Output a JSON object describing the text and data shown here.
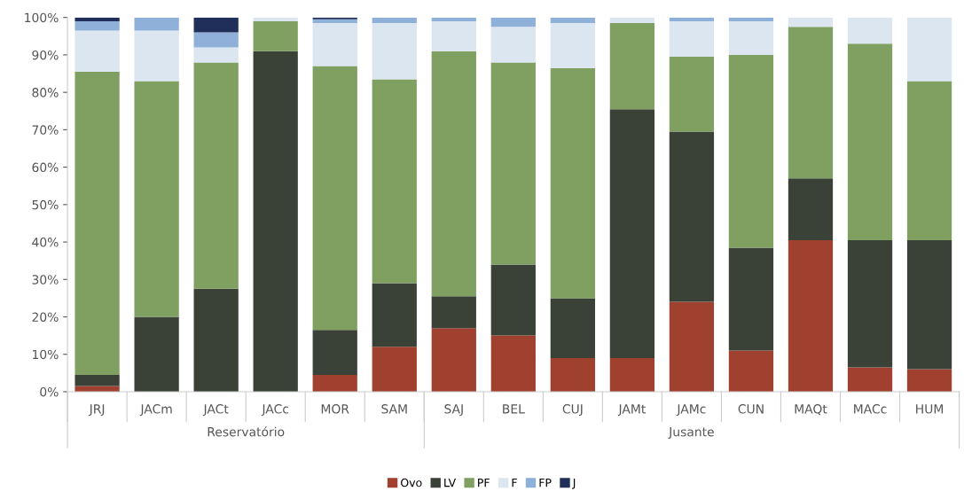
{
  "chart_data": {
    "type": "bar",
    "stacked": true,
    "categories": [
      "JRJ",
      "JACm",
      "JACt",
      "JACc",
      "MOR",
      "SAM",
      "SAJ",
      "BEL",
      "CUJ",
      "JAMt",
      "JAMc",
      "CUN",
      "MAQt",
      "MACc",
      "HUM"
    ],
    "series": [
      {
        "name": "Ovo",
        "color": "#a0402e",
        "values": [
          1.5,
          0,
          0,
          0,
          4.5,
          12,
          17,
          15,
          9,
          9,
          24,
          11,
          40.5,
          6.5,
          6
        ]
      },
      {
        "name": "LV",
        "color": "#3a4238",
        "values": [
          3,
          20,
          27.5,
          91,
          12,
          17,
          8.5,
          19,
          16,
          66.5,
          45.5,
          27.5,
          16.5,
          34,
          34.5
        ]
      },
      {
        "name": "PF",
        "color": "#7fa060",
        "values": [
          81,
          63,
          60.5,
          8,
          70.5,
          54.5,
          65.5,
          54,
          61.5,
          23,
          20,
          51.5,
          40.5,
          52.5,
          42.5
        ]
      },
      {
        "name": "F",
        "color": "#dce6f0",
        "values": [
          11,
          13.5,
          4,
          1,
          11.5,
          15,
          8,
          9.5,
          12,
          1.5,
          9.5,
          9,
          2.5,
          7,
          17
        ]
      },
      {
        "name": "FP",
        "color": "#8fb0d8",
        "values": [
          2.5,
          3.5,
          4,
          0,
          1,
          1.5,
          1,
          2.5,
          1.5,
          0,
          1,
          1,
          0,
          0,
          0
        ]
      },
      {
        "name": "J",
        "color": "#1f2f5a",
        "values": [
          1,
          0,
          4,
          0,
          0.5,
          0,
          0,
          0,
          0,
          0,
          0,
          0,
          0,
          0,
          0
        ]
      }
    ],
    "ylim": [
      0,
      100
    ],
    "yticks": [
      {
        "value": 0,
        "label": "0%"
      },
      {
        "value": 10,
        "label": "10%"
      },
      {
        "value": 20,
        "label": "20%"
      },
      {
        "value": 30,
        "label": "30%"
      },
      {
        "value": 40,
        "label": "40%"
      },
      {
        "value": 50,
        "label": "50%"
      },
      {
        "value": 60,
        "label": "60%"
      },
      {
        "value": 70,
        "label": "70%"
      },
      {
        "value": 80,
        "label": "80%"
      },
      {
        "value": 90,
        "label": "90%"
      },
      {
        "value": 100,
        "label": "100%"
      }
    ],
    "annotations": [
      "Reservatório",
      "Jusante"
    ],
    "legend": "bottom",
    "grid": false
  }
}
